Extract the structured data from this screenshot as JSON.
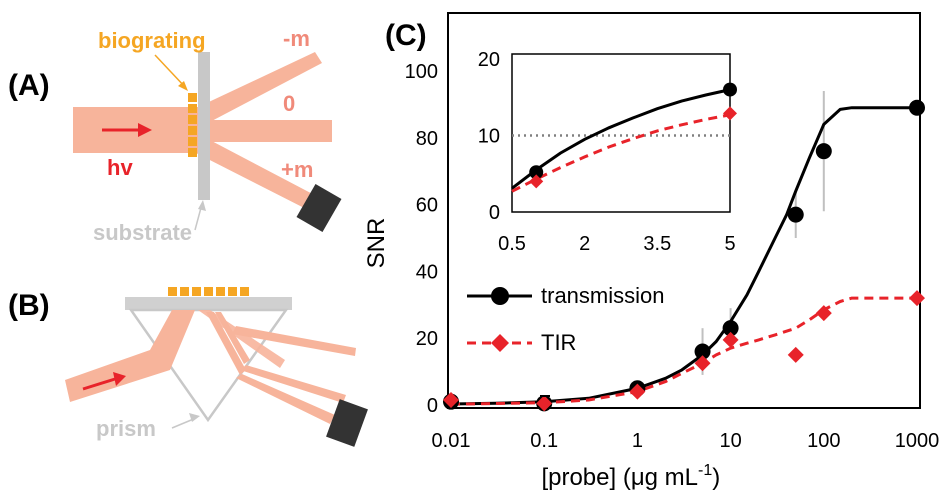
{
  "panels": {
    "a": {
      "label": "(A)",
      "biograting": "biograting",
      "minus_m": "-m",
      "zero": "0",
      "plus_m": "+m",
      "hv": "hv",
      "substrate": "substrate"
    },
    "b": {
      "label": "(B)",
      "prism": "prism"
    },
    "c": {
      "label": "(C)"
    }
  },
  "colors": {
    "beam": "#f7b49b",
    "grating": "#f5a623",
    "arrow": "#e8232a",
    "substrate": "#c8c8c8",
    "detector": "#333333",
    "transmission": "#000000",
    "tir": "#e8232a",
    "errorbar": "#c0c0c0",
    "threshold": "#808080"
  },
  "chart_data": [
    {
      "type": "scatter",
      "xscale": "log",
      "xlabel": "[probe] (μg mL",
      "xlabel_sup": "-1",
      "xlabel_end": ")",
      "ylabel": "SNR",
      "xlim": [
        0.01,
        1000
      ],
      "ylim": [
        0,
        100
      ],
      "xticks": [
        0.01,
        0.1,
        1,
        10,
        100,
        1000
      ],
      "xtick_labels": [
        "0.01",
        "0.1",
        "1",
        "10",
        "100",
        "1000"
      ],
      "yticks": [
        0,
        20,
        40,
        60,
        80,
        100
      ],
      "ytick_labels": [
        "0",
        "20",
        "40",
        "60",
        "80",
        "100"
      ],
      "legend": {
        "position": "center-left",
        "entries": [
          "transmission",
          "TIR"
        ]
      },
      "series": [
        {
          "name": "transmission",
          "marker": "circle",
          "line": "solid",
          "x": [
            0.01,
            0.1,
            1,
            5,
            10,
            50,
            100,
            1000
          ],
          "y": [
            1,
            0.5,
            5,
            16,
            23,
            57,
            76,
            89
          ],
          "error": [
            0,
            0,
            0,
            7,
            6,
            7,
            18,
            0
          ],
          "curve_x": [
            0.01,
            0.03,
            0.1,
            0.3,
            1,
            2,
            3,
            5,
            7,
            10,
            15,
            20,
            30,
            40,
            50,
            70,
            100,
            150,
            200,
            300,
            500,
            1000
          ],
          "curve_y": [
            0.3,
            0.5,
            1,
            2,
            5,
            8,
            10.5,
            15,
            19,
            25,
            33,
            40,
            50,
            57,
            64,
            74,
            84,
            88.5,
            89,
            89,
            89,
            89
          ]
        },
        {
          "name": "TIR",
          "marker": "diamond",
          "line": "dashed",
          "x": [
            0.01,
            0.1,
            1,
            5,
            10,
            50,
            100,
            1000
          ],
          "y": [
            1.5,
            0.5,
            4,
            12.5,
            19.5,
            15,
            27.5,
            32
          ],
          "error": [
            0,
            0,
            0,
            0,
            0,
            0,
            0,
            0
          ],
          "curve_x": [
            0.01,
            0.1,
            0.3,
            1,
            2,
            3,
            5,
            7,
            10,
            15,
            20,
            30,
            50,
            70,
            100,
            150,
            200,
            300,
            500,
            1000
          ],
          "curve_y": [
            0.2,
            0.7,
            1.5,
            4,
            7,
            9.5,
            12.5,
            15,
            17,
            18.5,
            19.5,
            21,
            23,
            25.5,
            28.5,
            31,
            32,
            32,
            32,
            32
          ]
        }
      ]
    },
    {
      "type": "scatter",
      "xlim": [
        0.5,
        5
      ],
      "ylim": [
        0,
        20
      ],
      "xticks": [
        0.5,
        2,
        3.5,
        5
      ],
      "xtick_labels": [
        "0.5",
        "2",
        "3.5",
        "5"
      ],
      "yticks": [
        0,
        10,
        20
      ],
      "ytick_labels": [
        "0",
        "10",
        "20"
      ],
      "threshold": 10,
      "series": [
        {
          "name": "transmission",
          "marker": "circle",
          "line": "solid",
          "x": [
            1,
            5
          ],
          "y": [
            5.2,
            16
          ],
          "curve_x": [
            0.5,
            1,
            1.5,
            2,
            2.5,
            3,
            3.5,
            4,
            4.5,
            5
          ],
          "curve_y": [
            3.1,
            5.5,
            7.7,
            9.5,
            11,
            12.3,
            13.5,
            14.5,
            15.3,
            16
          ]
        },
        {
          "name": "TIR",
          "marker": "diamond",
          "line": "dashed",
          "x": [
            1,
            5
          ],
          "y": [
            4,
            12.9
          ],
          "curve_x": [
            0.5,
            1,
            1.5,
            2,
            2.5,
            3,
            3.5,
            4,
            4.5,
            5
          ],
          "curve_y": [
            2.7,
            4.3,
            5.8,
            7.2,
            8.5,
            9.6,
            10.6,
            11.4,
            12.1,
            12.7
          ]
        }
      ]
    }
  ]
}
